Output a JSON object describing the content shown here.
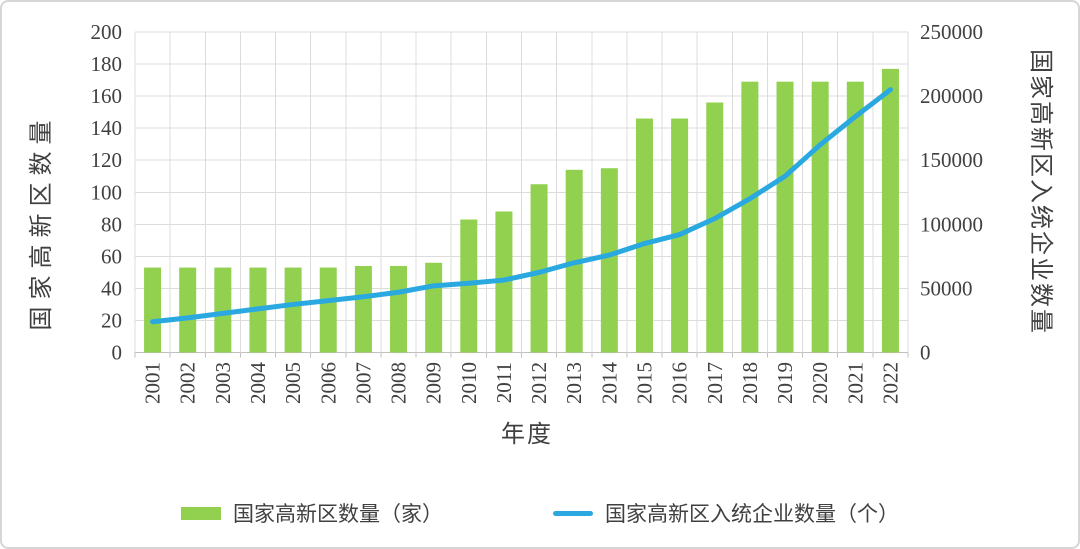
{
  "chart_data": {
    "type": "bar+line combo",
    "categories": [
      "2001",
      "2002",
      "2003",
      "2004",
      "2005",
      "2006",
      "2007",
      "2008",
      "2009",
      "2010",
      "2011",
      "2012",
      "2013",
      "2014",
      "2015",
      "2016",
      "2017",
      "2018",
      "2019",
      "2020",
      "2021",
      "2022"
    ],
    "series": [
      {
        "name": "国家高新区数量（家）",
        "type": "bar",
        "axis": "left",
        "color": "#92D050",
        "values": [
          53,
          53,
          53,
          53,
          53,
          53,
          54,
          54,
          56,
          83,
          88,
          105,
          114,
          115,
          146,
          146,
          156,
          169,
          169,
          169,
          169,
          177
        ]
      },
      {
        "name": "国家高新区入统企业数量（个）",
        "type": "line",
        "axis": "right",
        "color": "#29A9E0",
        "values": [
          24000,
          27000,
          30500,
          34000,
          37500,
          40500,
          43500,
          47000,
          52000,
          54000,
          56500,
          62500,
          70000,
          76000,
          85000,
          92000,
          104500,
          120000,
          137500,
          162000,
          184000,
          205000
        ]
      }
    ],
    "left_axis": {
      "title": "国家高新区数量",
      "min": 0,
      "max": 200,
      "step": 20,
      "ticks": [
        "0",
        "20",
        "40",
        "60",
        "80",
        "100",
        "120",
        "140",
        "160",
        "180",
        "200"
      ]
    },
    "right_axis": {
      "title": "国家高新区入统企业数量",
      "min": 0,
      "max": 250000,
      "step": 50000,
      "ticks": [
        "0",
        "50000",
        "100000",
        "150000",
        "200000",
        "250000"
      ]
    },
    "x_axis": {
      "title": "年度"
    },
    "legend_position": "bottom",
    "grid": {
      "horizontal": true,
      "vertical": true,
      "color": "#DCDCDC",
      "axis_color": "#BFBFBF"
    },
    "text_color": "#404040"
  }
}
